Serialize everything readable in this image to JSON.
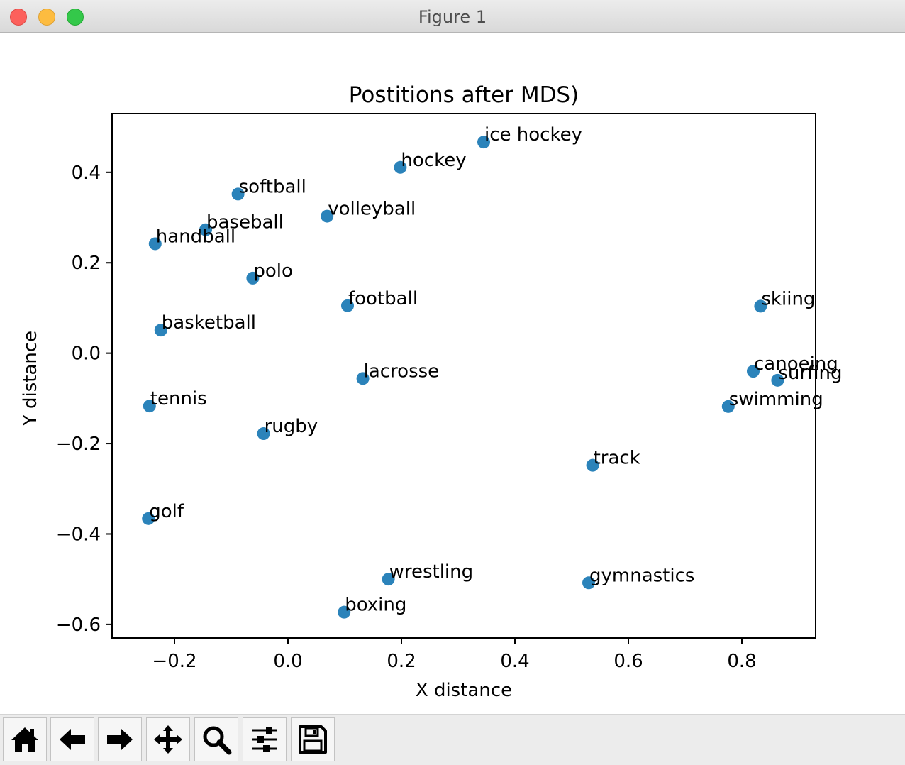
{
  "window": {
    "title": "Figure 1"
  },
  "toolbar": {
    "buttons": [
      {
        "icon": "home-icon"
      },
      {
        "icon": "back-arrow-icon"
      },
      {
        "icon": "forward-arrow-icon"
      },
      {
        "icon": "pan-move-icon"
      },
      {
        "icon": "zoom-magnifier-icon"
      },
      {
        "icon": "subplots-sliders-icon"
      },
      {
        "icon": "save-floppy-icon"
      }
    ]
  },
  "chart_data": {
    "type": "scatter",
    "title": "Postitions after MDS)",
    "xlabel": "X distance",
    "ylabel": "Y distance",
    "xlim": [
      -0.31,
      0.93
    ],
    "ylim": [
      -0.63,
      0.53
    ],
    "xticks": [
      -0.2,
      0.0,
      0.2,
      0.4,
      0.6,
      0.8
    ],
    "yticks": [
      -0.6,
      -0.4,
      -0.2,
      0.0,
      0.2,
      0.4
    ],
    "xtick_labels": [
      "−0.2",
      "0.0",
      "0.2",
      "0.4",
      "0.6",
      "0.8"
    ],
    "ytick_labels": [
      "−0.6",
      "−0.4",
      "−0.2",
      "0.0",
      "0.2",
      "0.4"
    ],
    "grid": false,
    "marker_color": "#2b83ba",
    "points": [
      {
        "label": "ice hockey",
        "x": 0.345,
        "y": 0.467
      },
      {
        "label": "hockey",
        "x": 0.198,
        "y": 0.411
      },
      {
        "label": "softball",
        "x": -0.088,
        "y": 0.352
      },
      {
        "label": "volleyball",
        "x": 0.069,
        "y": 0.303
      },
      {
        "label": "baseball",
        "x": -0.145,
        "y": 0.273
      },
      {
        "label": "handball",
        "x": -0.234,
        "y": 0.242
      },
      {
        "label": "polo",
        "x": -0.062,
        "y": 0.166
      },
      {
        "label": "football",
        "x": 0.105,
        "y": 0.105
      },
      {
        "label": "skiing",
        "x": 0.833,
        "y": 0.104
      },
      {
        "label": "basketball",
        "x": -0.224,
        "y": 0.051
      },
      {
        "label": "canoeing",
        "x": 0.82,
        "y": -0.04
      },
      {
        "label": "surfing",
        "x": 0.863,
        "y": -0.06
      },
      {
        "label": "lacrosse",
        "x": 0.132,
        "y": -0.056
      },
      {
        "label": "tennis",
        "x": -0.244,
        "y": -0.117
      },
      {
        "label": "swimming",
        "x": 0.776,
        "y": -0.118
      },
      {
        "label": "rugby",
        "x": -0.043,
        "y": -0.178
      },
      {
        "label": "track",
        "x": 0.537,
        "y": -0.248
      },
      {
        "label": "golf",
        "x": -0.246,
        "y": -0.366
      },
      {
        "label": "wrestling",
        "x": 0.177,
        "y": -0.5
      },
      {
        "label": "gymnastics",
        "x": 0.53,
        "y": -0.508
      },
      {
        "label": "boxing",
        "x": 0.099,
        "y": -0.573
      }
    ]
  }
}
